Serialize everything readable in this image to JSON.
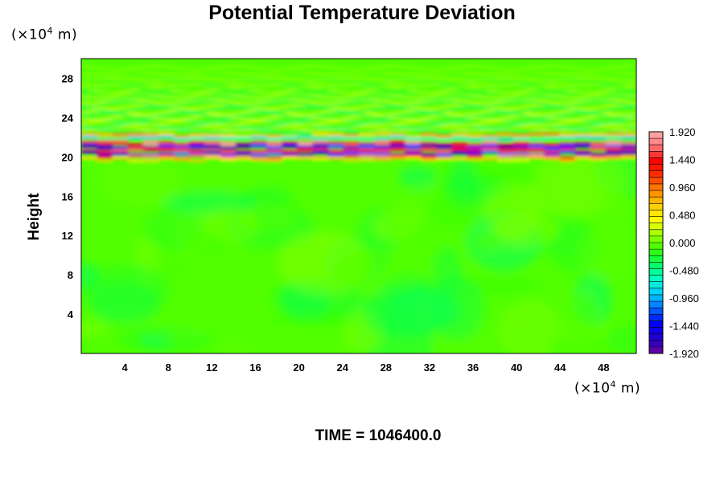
{
  "chart_data": {
    "type": "heatmap",
    "title": "Potential Temperature Deviation",
    "ylabel": "Height",
    "y_unit_prefix": "(×10",
    "y_unit_exp": "4",
    "y_unit_suffix": " m)",
    "x_unit_prefix": "(×10",
    "x_unit_exp": "4",
    "x_unit_suffix": " m)",
    "xlim": [
      0,
      51
    ],
    "ylim": [
      0,
      30
    ],
    "x_ticks": [
      "4",
      "8",
      "12",
      "16",
      "20",
      "24",
      "28",
      "32",
      "36",
      "40",
      "44",
      "48"
    ],
    "x_tick_values": [
      4,
      8,
      12,
      16,
      20,
      24,
      28,
      32,
      36,
      40,
      44,
      48
    ],
    "y_ticks": [
      "4",
      "8",
      "12",
      "16",
      "20",
      "24",
      "28"
    ],
    "y_tick_values": [
      4,
      8,
      12,
      16,
      20,
      24,
      28
    ],
    "colorbar": {
      "min": -1.92,
      "max": 1.92,
      "levels": 34,
      "tick_labels": [
        "1.920",
        "1.440",
        "0.960",
        "0.480",
        "0.000",
        "-0.480",
        "-0.960",
        "-1.440",
        "-1.920"
      ],
      "tick_values": [
        1.92,
        1.44,
        0.96,
        0.48,
        0.0,
        -0.48,
        -0.96,
        -1.44,
        -1.92
      ],
      "colormap": [
        "#6a0099",
        "#2200cc",
        "#0000ff",
        "#0066ff",
        "#00ccff",
        "#00ffcc",
        "#00ff66",
        "#33ff00",
        "#99ff00",
        "#ffff00",
        "#ffcc00",
        "#ff8800",
        "#ff3300",
        "#ff0000",
        "#ff7777",
        "#ffaaaa"
      ]
    },
    "background_value": -0.05,
    "features": [
      {
        "kind": "dominant band",
        "description": "strong alternating positive/negative layer",
        "y_range": [
          19.8,
          22.6
        ],
        "max_value": 1.92,
        "min_value": -1.92
      },
      {
        "kind": "upper wave region",
        "y_range": [
          22.6,
          29.5
        ],
        "value_range": [
          -0.7,
          0.6
        ]
      },
      {
        "kind": "lower region",
        "y_range": [
          0,
          19.8
        ],
        "value_range": [
          -0.4,
          0.1
        ]
      }
    ]
  },
  "time_label": "TIME = 1046400.0"
}
